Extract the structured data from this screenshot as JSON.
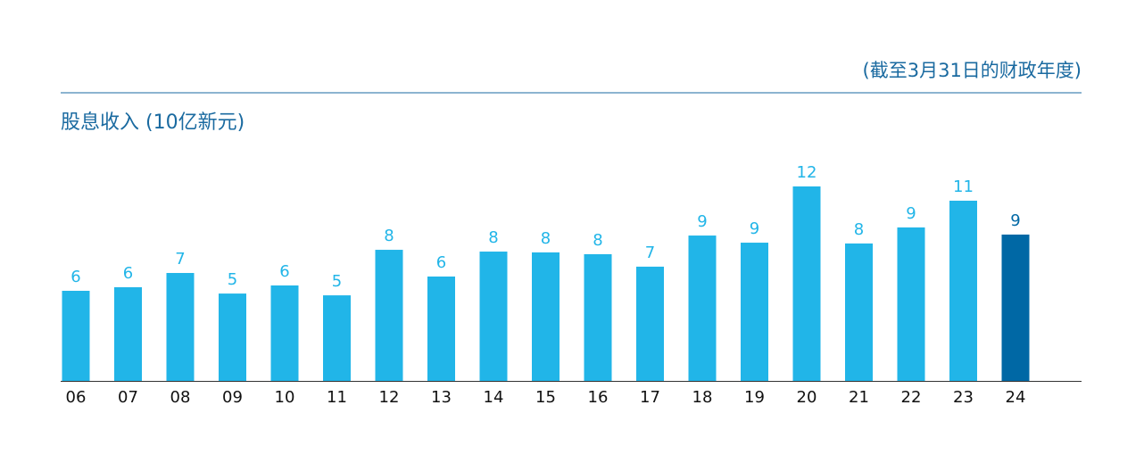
{
  "chart_data": {
    "type": "bar",
    "title": "股息收入 (10亿新元)",
    "subtitle": "(截至3月31日的财政年度)",
    "categories": [
      "06",
      "07",
      "08",
      "09",
      "10",
      "11",
      "12",
      "13",
      "14",
      "15",
      "16",
      "17",
      "18",
      "19",
      "20",
      "21",
      "22",
      "23",
      "24"
    ],
    "values": [
      5.56,
      5.78,
      6.66,
      5.39,
      5.89,
      5.28,
      8.09,
      6.44,
      7.98,
      7.93,
      7.82,
      7.05,
      8.97,
      8.53,
      12.0,
      8.48,
      9.47,
      11.12,
      9.03
    ],
    "value_labels": [
      "6",
      "6",
      "7",
      "5",
      "6",
      "5",
      "8",
      "6",
      "8",
      "8",
      "8",
      "7",
      "9",
      "9",
      "12",
      "8",
      "9",
      "11",
      "9"
    ],
    "colors": [
      "#21b5e8",
      "#21b5e8",
      "#21b5e8",
      "#21b5e8",
      "#21b5e8",
      "#21b5e8",
      "#21b5e8",
      "#21b5e8",
      "#21b5e8",
      "#21b5e8",
      "#21b5e8",
      "#21b5e8",
      "#21b5e8",
      "#21b5e8",
      "#21b5e8",
      "#21b5e8",
      "#21b5e8",
      "#21b5e8",
      "#0068a5"
    ],
    "ylim": [
      0,
      12
    ]
  }
}
